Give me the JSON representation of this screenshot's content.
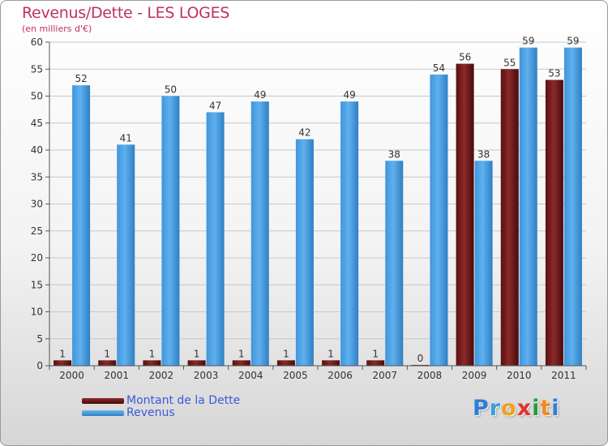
{
  "header": {
    "title": "Revenus/Dette - LES LOGES",
    "subtitle": "(en milliers d'€)"
  },
  "chart_data": {
    "type": "bar",
    "categories": [
      "2000",
      "2001",
      "2002",
      "2003",
      "2004",
      "2005",
      "2006",
      "2007",
      "2008",
      "2009",
      "2010",
      "2011"
    ],
    "series": [
      {
        "name": "Montant de la Dette",
        "color": "#6e1818",
        "values": [
          1,
          1,
          1,
          1,
          1,
          1,
          1,
          1,
          0,
          56,
          55,
          53
        ]
      },
      {
        "name": "Revenus",
        "color": "#4fa3e6",
        "values": [
          52,
          41,
          50,
          47,
          49,
          42,
          49,
          38,
          54,
          38,
          59,
          59
        ]
      }
    ],
    "ylim": [
      0,
      60
    ],
    "yticks": [
      0,
      5,
      10,
      15,
      20,
      25,
      30,
      35,
      40,
      45,
      50,
      55,
      60
    ],
    "grid": true,
    "legend": "bottom-left"
  },
  "logo": {
    "letters": [
      "P",
      "r",
      "o",
      "x",
      "i",
      "t",
      "i"
    ],
    "colors": [
      "#2f7fd4",
      "#3a9ed8",
      "#f0a020",
      "#e23030",
      "#2a9a3a",
      "#f08a20",
      "#2f7fd4"
    ]
  }
}
